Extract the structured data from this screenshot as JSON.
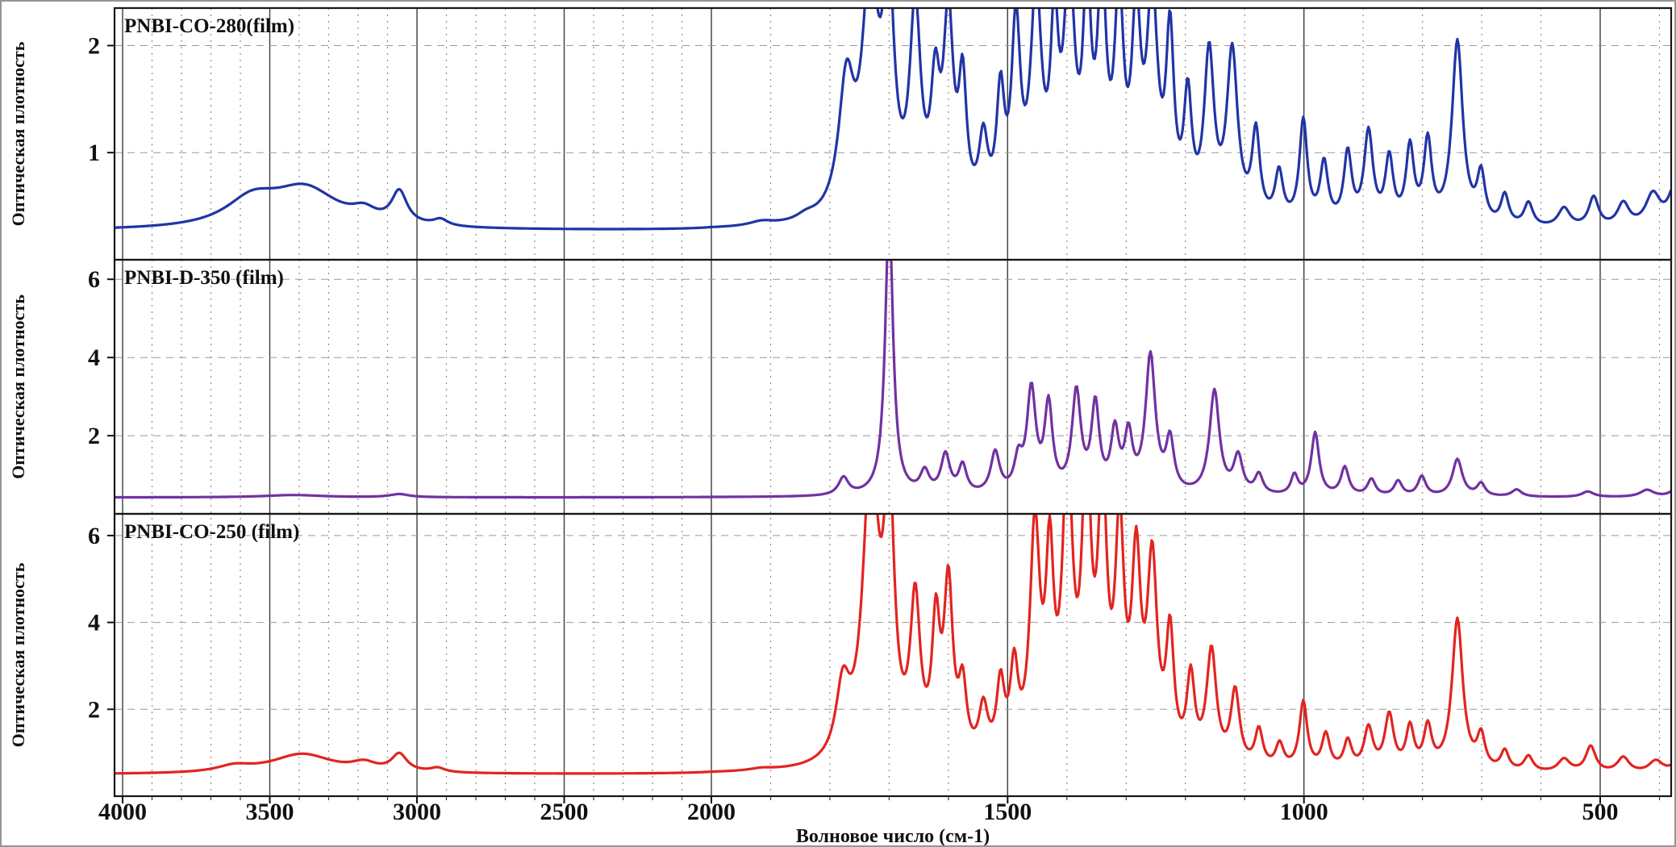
{
  "figure": {
    "xlabel": "Волновое число (см-1)",
    "background": "#ffffff",
    "border_color": "#949494",
    "x_axis": {
      "ticks": [
        4000,
        3500,
        3000,
        2500,
        2000,
        1500,
        1000,
        500
      ],
      "minor_step": 100,
      "range_left": 4027,
      "range_right": 380,
      "scale_break_at": 2000,
      "note": "wavenumber axis compressed above 2000 cm-1 (right half expanded ~2x)"
    },
    "grid": {
      "major_color": "#3c3c3c",
      "minor_color": "#8c8c8c",
      "h_color": "#999999"
    }
  },
  "chart_data": [
    {
      "type": "line",
      "title": "PNBI-CO-280(film)",
      "ylabel": "Оптическая плотность",
      "color": "#2134a6",
      "ylim": [
        0,
        2.35
      ],
      "yticks": [
        1,
        2
      ],
      "baseline": 0.27,
      "peaks": [
        [
          3560,
          0.24,
          110
        ],
        [
          3380,
          0.36,
          140
        ],
        [
          3180,
          0.1,
          50
        ],
        [
          3060,
          0.3,
          32
        ],
        [
          2920,
          0.06,
          30
        ],
        [
          1915,
          0.04,
          25
        ],
        [
          1840,
          0.05,
          20
        ],
        [
          1772,
          1.2,
          16
        ],
        [
          1732,
          2.15,
          16
        ],
        [
          1701,
          2.05,
          11
        ],
        [
          1656,
          1.85,
          11
        ],
        [
          1622,
          1.05,
          9
        ],
        [
          1600,
          1.75,
          10
        ],
        [
          1576,
          1.15,
          8
        ],
        [
          1541,
          0.65,
          9
        ],
        [
          1512,
          1.05,
          8
        ],
        [
          1486,
          1.7,
          9
        ],
        [
          1452,
          2.0,
          11
        ],
        [
          1421,
          1.55,
          8
        ],
        [
          1396,
          2.1,
          11
        ],
        [
          1366,
          1.9,
          8
        ],
        [
          1341,
          2.0,
          9
        ],
        [
          1312,
          1.9,
          9
        ],
        [
          1283,
          1.7,
          9
        ],
        [
          1256,
          1.95,
          11
        ],
        [
          1226,
          1.6,
          8
        ],
        [
          1196,
          1.05,
          8
        ],
        [
          1160,
          1.5,
          10
        ],
        [
          1121,
          1.55,
          11
        ],
        [
          1081,
          0.8,
          8
        ],
        [
          1042,
          0.45,
          8
        ],
        [
          1001,
          0.95,
          8
        ],
        [
          966,
          0.55,
          8
        ],
        [
          926,
          0.65,
          8
        ],
        [
          891,
          0.85,
          9
        ],
        [
          856,
          0.6,
          8
        ],
        [
          821,
          0.7,
          8
        ],
        [
          791,
          0.75,
          8
        ],
        [
          741,
          1.72,
          11
        ],
        [
          701,
          0.45,
          8
        ],
        [
          661,
          0.28,
          8
        ],
        [
          621,
          0.22,
          9
        ],
        [
          561,
          0.18,
          12
        ],
        [
          511,
          0.28,
          10
        ],
        [
          461,
          0.22,
          12
        ],
        [
          411,
          0.3,
          15
        ],
        [
          372,
          0.42,
          14
        ]
      ]
    },
    {
      "type": "line",
      "title": "PNBI-D-350 (film)",
      "ylabel": "Оптическая плотность",
      "color": "#7231a2",
      "ylim": [
        0,
        6.5
      ],
      "yticks": [
        2,
        4,
        6
      ],
      "baseline": 0.42,
      "peaks": [
        [
          3420,
          0.06,
          120
        ],
        [
          3060,
          0.08,
          40
        ],
        [
          1777,
          0.45,
          10
        ],
        [
          1700,
          7.2,
          8
        ],
        [
          1640,
          0.55,
          9
        ],
        [
          1605,
          1.0,
          9
        ],
        [
          1576,
          0.72,
          8
        ],
        [
          1521,
          1.05,
          9
        ],
        [
          1482,
          0.78,
          8
        ],
        [
          1460,
          2.6,
          9
        ],
        [
          1431,
          2.2,
          8
        ],
        [
          1384,
          2.55,
          9
        ],
        [
          1352,
          2.2,
          8
        ],
        [
          1319,
          1.5,
          8
        ],
        [
          1296,
          1.4,
          8
        ],
        [
          1259,
          3.5,
          10
        ],
        [
          1226,
          1.3,
          8
        ],
        [
          1151,
          2.65,
          10
        ],
        [
          1111,
          0.95,
          9
        ],
        [
          1076,
          0.5,
          8
        ],
        [
          1016,
          0.5,
          7
        ],
        [
          981,
          1.6,
          8
        ],
        [
          931,
          0.72,
          8
        ],
        [
          886,
          0.42,
          8
        ],
        [
          841,
          0.38,
          8
        ],
        [
          801,
          0.5,
          8
        ],
        [
          741,
          0.95,
          10
        ],
        [
          701,
          0.32,
          8
        ],
        [
          641,
          0.18,
          10
        ],
        [
          521,
          0.14,
          12
        ],
        [
          421,
          0.18,
          14
        ],
        [
          372,
          0.2,
          12
        ]
      ]
    },
    {
      "type": "line",
      "title": "PNBI-CO-250 (film)",
      "ylabel": "Оптическая плотность",
      "color": "#e22420",
      "ylim": [
        0,
        6.5
      ],
      "yticks": [
        2,
        4,
        6
      ],
      "baseline": 0.5,
      "peaks": [
        [
          3620,
          0.14,
          70
        ],
        [
          3390,
          0.45,
          130
        ],
        [
          3180,
          0.18,
          50
        ],
        [
          3060,
          0.4,
          32
        ],
        [
          2930,
          0.1,
          30
        ],
        [
          1915,
          0.05,
          25
        ],
        [
          1778,
          1.6,
          14
        ],
        [
          1731,
          6.8,
          16
        ],
        [
          1700,
          5.9,
          10
        ],
        [
          1656,
          3.5,
          10
        ],
        [
          1621,
          2.9,
          8
        ],
        [
          1600,
          3.9,
          9
        ],
        [
          1576,
          1.55,
          8
        ],
        [
          1541,
          1.15,
          9
        ],
        [
          1512,
          1.65,
          8
        ],
        [
          1489,
          1.95,
          8
        ],
        [
          1454,
          5.2,
          10
        ],
        [
          1429,
          4.2,
          8
        ],
        [
          1399,
          6.6,
          10
        ],
        [
          1367,
          6.4,
          9
        ],
        [
          1340,
          5.8,
          9
        ],
        [
          1311,
          5.0,
          9
        ],
        [
          1283,
          4.3,
          9
        ],
        [
          1256,
          4.4,
          10
        ],
        [
          1226,
          2.8,
          8
        ],
        [
          1191,
          1.9,
          8
        ],
        [
          1156,
          2.6,
          10
        ],
        [
          1116,
          1.7,
          9
        ],
        [
          1076,
          0.85,
          8
        ],
        [
          1041,
          0.55,
          8
        ],
        [
          1001,
          1.55,
          8
        ],
        [
          963,
          0.8,
          8
        ],
        [
          926,
          0.65,
          8
        ],
        [
          891,
          0.95,
          9
        ],
        [
          856,
          1.25,
          9
        ],
        [
          821,
          0.95,
          8
        ],
        [
          791,
          0.95,
          8
        ],
        [
          741,
          3.5,
          11
        ],
        [
          701,
          0.75,
          8
        ],
        [
          661,
          0.45,
          8
        ],
        [
          621,
          0.35,
          9
        ],
        [
          561,
          0.3,
          12
        ],
        [
          516,
          0.6,
          10
        ],
        [
          461,
          0.35,
          12
        ],
        [
          406,
          0.28,
          14
        ],
        [
          372,
          0.2,
          12
        ]
      ]
    }
  ]
}
